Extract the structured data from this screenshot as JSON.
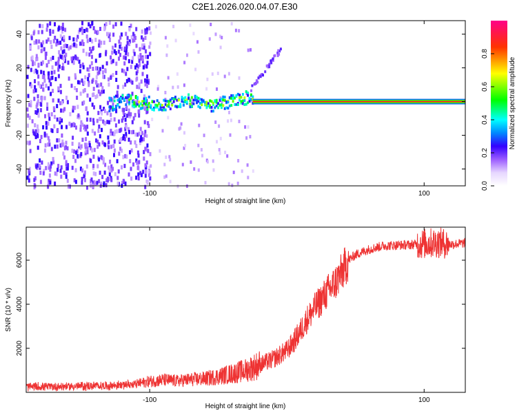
{
  "title": "C2E1.2026.020.04.07.E30",
  "colors": {
    "line": "#ee3333",
    "axis": "#000000",
    "colormap": [
      "#ffffff",
      "#e6d6ff",
      "#9b5cff",
      "#4a00ff",
      "#0000ff",
      "#00ffff",
      "#00ff00",
      "#ffff00",
      "#ff0000",
      "#ff00aa"
    ]
  },
  "chart_data": [
    {
      "type": "heatmap",
      "name": "spectrogram",
      "xlabel": "Height of straight line (km)",
      "ylabel": "Frequency (Hz)",
      "xlim": [
        -190,
        130
      ],
      "ylim": [
        -50,
        48
      ],
      "x_ticks": [
        {
          "value": -100,
          "label": "-100"
        },
        {
          "value": 100,
          "label": "100"
        }
      ],
      "y_ticks": [
        {
          "value": -40,
          "label": "-40"
        },
        {
          "value": -20,
          "label": "-20"
        },
        {
          "value": 0,
          "label": "0"
        },
        {
          "value": 20,
          "label": "20"
        },
        {
          "value": 40,
          "label": "40"
        }
      ],
      "colorbar": {
        "label": "Normalized spectral amplitude",
        "range": [
          0,
          1
        ],
        "ticks": [
          {
            "value": 0.0,
            "label": "0.0"
          },
          {
            "value": 0.2,
            "label": "0.2"
          },
          {
            "value": 0.4,
            "label": "0.4"
          },
          {
            "value": 0.6,
            "label": "0.6"
          },
          {
            "value": 0.8,
            "label": "0.8"
          }
        ]
      },
      "carrier": {
        "start_x": -130,
        "end_x": 130,
        "strong_from_x": -25,
        "frequency": 0
      },
      "noise_region": {
        "x_from": -190,
        "x_to": -105
      },
      "drift_branch": {
        "start_x": -30,
        "end_x": -5,
        "start_freq": 5,
        "end_freq": 32
      }
    },
    {
      "type": "line",
      "name": "snr",
      "xlabel": "Height of straight line (km)",
      "ylabel": "SNR (10 * v/v)",
      "xlim": [
        -190,
        130
      ],
      "ylim": [
        0,
        7500
      ],
      "x_ticks": [
        {
          "value": -100,
          "label": "-100"
        },
        {
          "value": 100,
          "label": "100"
        }
      ],
      "y_ticks": [
        {
          "value": 2000,
          "label": "2000"
        },
        {
          "value": 4000,
          "label": "4000"
        },
        {
          "value": 6000,
          "label": "6000"
        }
      ],
      "series": [
        {
          "name": "SNR",
          "x": [
            -190,
            -170,
            -150,
            -130,
            -110,
            -100,
            -90,
            -80,
            -70,
            -60,
            -50,
            -40,
            -30,
            -20,
            -10,
            -5,
            0,
            5,
            10,
            15,
            20,
            25,
            30,
            35,
            40,
            45,
            50,
            60,
            70,
            80,
            90,
            100,
            110,
            120,
            130
          ],
          "values": [
            250,
            260,
            280,
            300,
            380,
            500,
            560,
            520,
            580,
            620,
            720,
            850,
            1000,
            1250,
            1500,
            1700,
            1900,
            2300,
            2800,
            3350,
            3800,
            4200,
            4600,
            4950,
            5450,
            6000,
            6250,
            6500,
            6650,
            6680,
            6700,
            6750,
            6800,
            6720,
            6780
          ]
        }
      ]
    }
  ]
}
